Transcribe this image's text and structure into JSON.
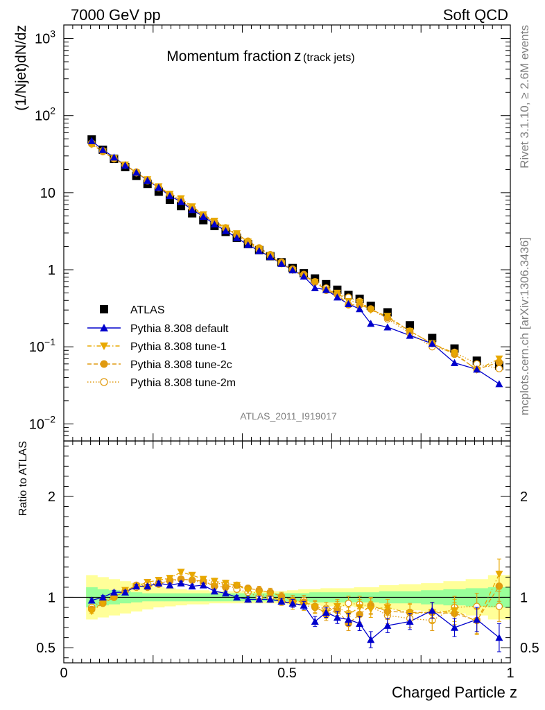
{
  "header": {
    "left": "7000 GeV pp",
    "right": "Soft QCD"
  },
  "side": {
    "rivet": "Rivet 3.1.10, ≥ 2.6M events",
    "mcplots": "mcplots.cern.ch [arXiv:1306.3436]"
  },
  "chart_data": [
    {
      "type": "scatter",
      "panel": "main",
      "title": "Momentum fraction",
      "title_var": "z",
      "title_sub": "(track jets)",
      "ylabel": "(1/Njet)dN/dz",
      "yscale": "log",
      "ylim": [
        0.006,
        1500
      ],
      "xlim": [
        0,
        1
      ],
      "ytick_labels": [
        {
          "v": 0.01,
          "base": "10",
          "exp": "−2"
        },
        {
          "v": 0.1,
          "base": "10",
          "exp": "−1"
        },
        {
          "v": 1,
          "base": "1",
          "exp": ""
        },
        {
          "v": 10,
          "base": "10",
          "exp": ""
        },
        {
          "v": 100,
          "base": "10",
          "exp": "2"
        },
        {
          "v": 1000,
          "base": "10",
          "exp": "3"
        }
      ],
      "watermark": "ATLAS_2011_I919017",
      "legend_position": "lower-left",
      "x": [
        0.0625,
        0.0875,
        0.1125,
        0.1375,
        0.1625,
        0.1875,
        0.2125,
        0.2375,
        0.2625,
        0.2875,
        0.3125,
        0.3375,
        0.3625,
        0.3875,
        0.4125,
        0.4375,
        0.4625,
        0.4875,
        0.5125,
        0.5375,
        0.5625,
        0.5875,
        0.6125,
        0.6375,
        0.6625,
        0.6875,
        0.725,
        0.775,
        0.825,
        0.875,
        0.925,
        0.975
      ],
      "series": [
        {
          "name": "ATLAS",
          "color": "#000000",
          "marker": "square",
          "values": [
            49,
            36,
            27.5,
            21.5,
            16.5,
            13,
            10.3,
            8.1,
            6.7,
            5.4,
            4.4,
            3.7,
            3.1,
            2.6,
            2.15,
            1.8,
            1.5,
            1.25,
            1.05,
            0.9,
            0.77,
            0.65,
            0.55,
            0.47,
            0.42,
            0.34,
            0.28,
            0.19,
            0.13,
            0.095,
            0.066,
            0.057
          ]
        },
        {
          "name": "Pythia 8.308 default",
          "color": "#0000cc",
          "marker": "triangle-up",
          "line": "solid",
          "values": [
            47,
            36,
            28.8,
            22.6,
            18.3,
            14.4,
            11.7,
            9.1,
            7.6,
            6.0,
            4.9,
            3.9,
            3.2,
            2.6,
            2.1,
            1.76,
            1.47,
            1.2,
            0.99,
            0.82,
            0.58,
            0.55,
            0.44,
            0.36,
            0.31,
            0.2,
            0.18,
            0.14,
            0.11,
            0.062,
            0.051,
            0.033
          ]
        },
        {
          "name": "Pythia 8.308 tune-1",
          "color": "#e8a800",
          "marker": "triangle-down",
          "line": "dashdot",
          "values": [
            42,
            34,
            27.8,
            23.0,
            18.1,
            14.8,
            12.0,
            9.6,
            8.4,
            6.6,
            5.2,
            4.3,
            3.5,
            2.95,
            2.3,
            1.85,
            1.52,
            1.2,
            0.98,
            0.82,
            0.69,
            0.55,
            0.5,
            0.39,
            0.38,
            0.3,
            0.25,
            0.16,
            0.11,
            0.083,
            0.05,
            0.07
          ]
        },
        {
          "name": "Pythia 8.308 tune-2c",
          "color": "#e09a10",
          "marker": "circle",
          "line": "dashed",
          "values": [
            43,
            34,
            27.5,
            22.8,
            18.5,
            14.3,
            11.6,
            9.5,
            7.9,
            6.3,
            5.1,
            4.1,
            3.4,
            2.9,
            2.35,
            1.92,
            1.57,
            1.26,
            1.02,
            0.86,
            0.7,
            0.54,
            0.48,
            0.35,
            0.35,
            0.31,
            0.24,
            0.16,
            0.11,
            0.08,
            0.051,
            0.063
          ]
        },
        {
          "name": "Pythia 8.308 tune-2m",
          "color": "#e09a10",
          "marker": "circle-open",
          "line": "dotted",
          "values": [
            44,
            35,
            27.5,
            22.8,
            18.1,
            14.7,
            11.7,
            9.4,
            7.9,
            6.3,
            5.0,
            4.2,
            3.5,
            2.8,
            2.25,
            1.8,
            1.5,
            1.2,
            1.0,
            0.87,
            0.69,
            0.58,
            0.49,
            0.44,
            0.39,
            0.31,
            0.23,
            0.15,
            0.1,
            0.085,
            0.06,
            0.052
          ]
        }
      ]
    },
    {
      "type": "line",
      "panel": "ratio",
      "ylabel": "Ratio to ATLAS",
      "xlabel": "Charged Particle z",
      "ylim": [
        0.35,
        2.55
      ],
      "xlim": [
        0,
        1
      ],
      "ytick_labels": [
        {
          "v": 0.5,
          "t": "0.5"
        },
        {
          "v": 1,
          "t": "1"
        },
        {
          "v": 2,
          "t": "2"
        }
      ],
      "xtick_labels": [
        {
          "v": 0,
          "t": "0"
        },
        {
          "v": 0.5,
          "t": "0.5"
        },
        {
          "v": 1,
          "t": "1"
        }
      ],
      "band_green_halfwidth": [
        0.1,
        0.08,
        0.07,
        0.06,
        0.05,
        0.04,
        0.04,
        0.04,
        0.04,
        0.04,
        0.04,
        0.04,
        0.04,
        0.04,
        0.04,
        0.04,
        0.04,
        0.04,
        0.04,
        0.04,
        0.05,
        0.05,
        0.05,
        0.05,
        0.05,
        0.05,
        0.06,
        0.06,
        0.07,
        0.08,
        0.09,
        0.1
      ],
      "band_yellow_halfwidth": [
        0.22,
        0.2,
        0.18,
        0.16,
        0.14,
        0.12,
        0.1,
        0.09,
        0.08,
        0.07,
        0.07,
        0.06,
        0.06,
        0.06,
        0.06,
        0.06,
        0.06,
        0.06,
        0.07,
        0.08,
        0.08,
        0.09,
        0.09,
        0.09,
        0.1,
        0.1,
        0.12,
        0.13,
        0.14,
        0.16,
        0.18,
        0.22
      ],
      "series": [
        {
          "name": "Pythia 8.308 default",
          "color": "#0000cc",
          "marker": "triangle-up",
          "line": "solid",
          "values": [
            0.97,
            1.0,
            1.05,
            1.05,
            1.11,
            1.11,
            1.14,
            1.12,
            1.14,
            1.11,
            1.12,
            1.06,
            1.04,
            1.0,
            0.98,
            0.98,
            0.98,
            0.96,
            0.94,
            0.92,
            0.76,
            0.85,
            0.8,
            0.78,
            0.74,
            0.58,
            0.72,
            0.76,
            0.87,
            0.7,
            0.78,
            0.6
          ],
          "err": [
            0.02,
            0.02,
            0.02,
            0.02,
            0.02,
            0.02,
            0.02,
            0.02,
            0.02,
            0.02,
            0.02,
            0.02,
            0.02,
            0.02,
            0.03,
            0.03,
            0.03,
            0.03,
            0.04,
            0.04,
            0.05,
            0.05,
            0.06,
            0.06,
            0.07,
            0.08,
            0.07,
            0.08,
            0.08,
            0.09,
            0.12,
            0.14
          ]
        },
        {
          "name": "Pythia 8.308 tune-1",
          "color": "#e8a800",
          "marker": "triangle-down",
          "line": "dashdot",
          "values": [
            0.86,
            0.94,
            1.0,
            1.07,
            1.11,
            1.15,
            1.17,
            1.19,
            1.25,
            1.22,
            1.18,
            1.16,
            1.14,
            1.12,
            1.07,
            1.03,
            1.01,
            0.96,
            0.93,
            0.92,
            0.9,
            0.85,
            0.91,
            0.83,
            0.9,
            0.88,
            0.9,
            0.84,
            0.85,
            0.87,
            0.76,
            1.23
          ],
          "err": [
            0.02,
            0.02,
            0.02,
            0.02,
            0.02,
            0.02,
            0.02,
            0.02,
            0.02,
            0.02,
            0.02,
            0.03,
            0.03,
            0.03,
            0.03,
            0.04,
            0.04,
            0.04,
            0.05,
            0.05,
            0.06,
            0.06,
            0.07,
            0.07,
            0.08,
            0.08,
            0.08,
            0.09,
            0.1,
            0.11,
            0.13,
            0.15
          ]
        },
        {
          "name": "Pythia 8.308 tune-2c",
          "color": "#e09a10",
          "marker": "circle",
          "line": "dashed",
          "values": [
            0.88,
            0.94,
            1.0,
            1.06,
            1.12,
            1.1,
            1.13,
            1.17,
            1.18,
            1.17,
            1.16,
            1.11,
            1.1,
            1.12,
            1.09,
            1.07,
            1.05,
            1.01,
            0.97,
            0.95,
            0.91,
            0.83,
            0.87,
            0.74,
            0.83,
            0.92,
            0.86,
            0.85,
            0.85,
            0.84,
            0.77,
            1.11
          ],
          "err": [
            0.02,
            0.02,
            0.02,
            0.02,
            0.02,
            0.02,
            0.02,
            0.02,
            0.02,
            0.02,
            0.02,
            0.03,
            0.03,
            0.03,
            0.03,
            0.04,
            0.04,
            0.04,
            0.05,
            0.05,
            0.06,
            0.06,
            0.07,
            0.07,
            0.08,
            0.08,
            0.08,
            0.09,
            0.1,
            0.11,
            0.13,
            0.15
          ]
        },
        {
          "name": "Pythia 8.308 tune-2m",
          "color": "#e09a10",
          "marker": "circle-open",
          "line": "dotted",
          "values": [
            0.9,
            0.97,
            1.0,
            1.06,
            1.1,
            1.13,
            1.14,
            1.16,
            1.18,
            1.17,
            1.14,
            1.14,
            1.13,
            1.08,
            1.05,
            1.0,
            1.0,
            0.96,
            0.95,
            0.97,
            0.9,
            0.89,
            0.89,
            0.94,
            0.93,
            0.91,
            0.82,
            0.79,
            0.77,
            0.9,
            0.91,
            0.91
          ],
          "err": [
            0.02,
            0.02,
            0.02,
            0.02,
            0.02,
            0.02,
            0.02,
            0.02,
            0.02,
            0.02,
            0.02,
            0.03,
            0.03,
            0.03,
            0.03,
            0.04,
            0.04,
            0.04,
            0.05,
            0.05,
            0.06,
            0.06,
            0.07,
            0.07,
            0.08,
            0.08,
            0.08,
            0.09,
            0.1,
            0.11,
            0.13,
            0.15
          ]
        }
      ]
    }
  ]
}
